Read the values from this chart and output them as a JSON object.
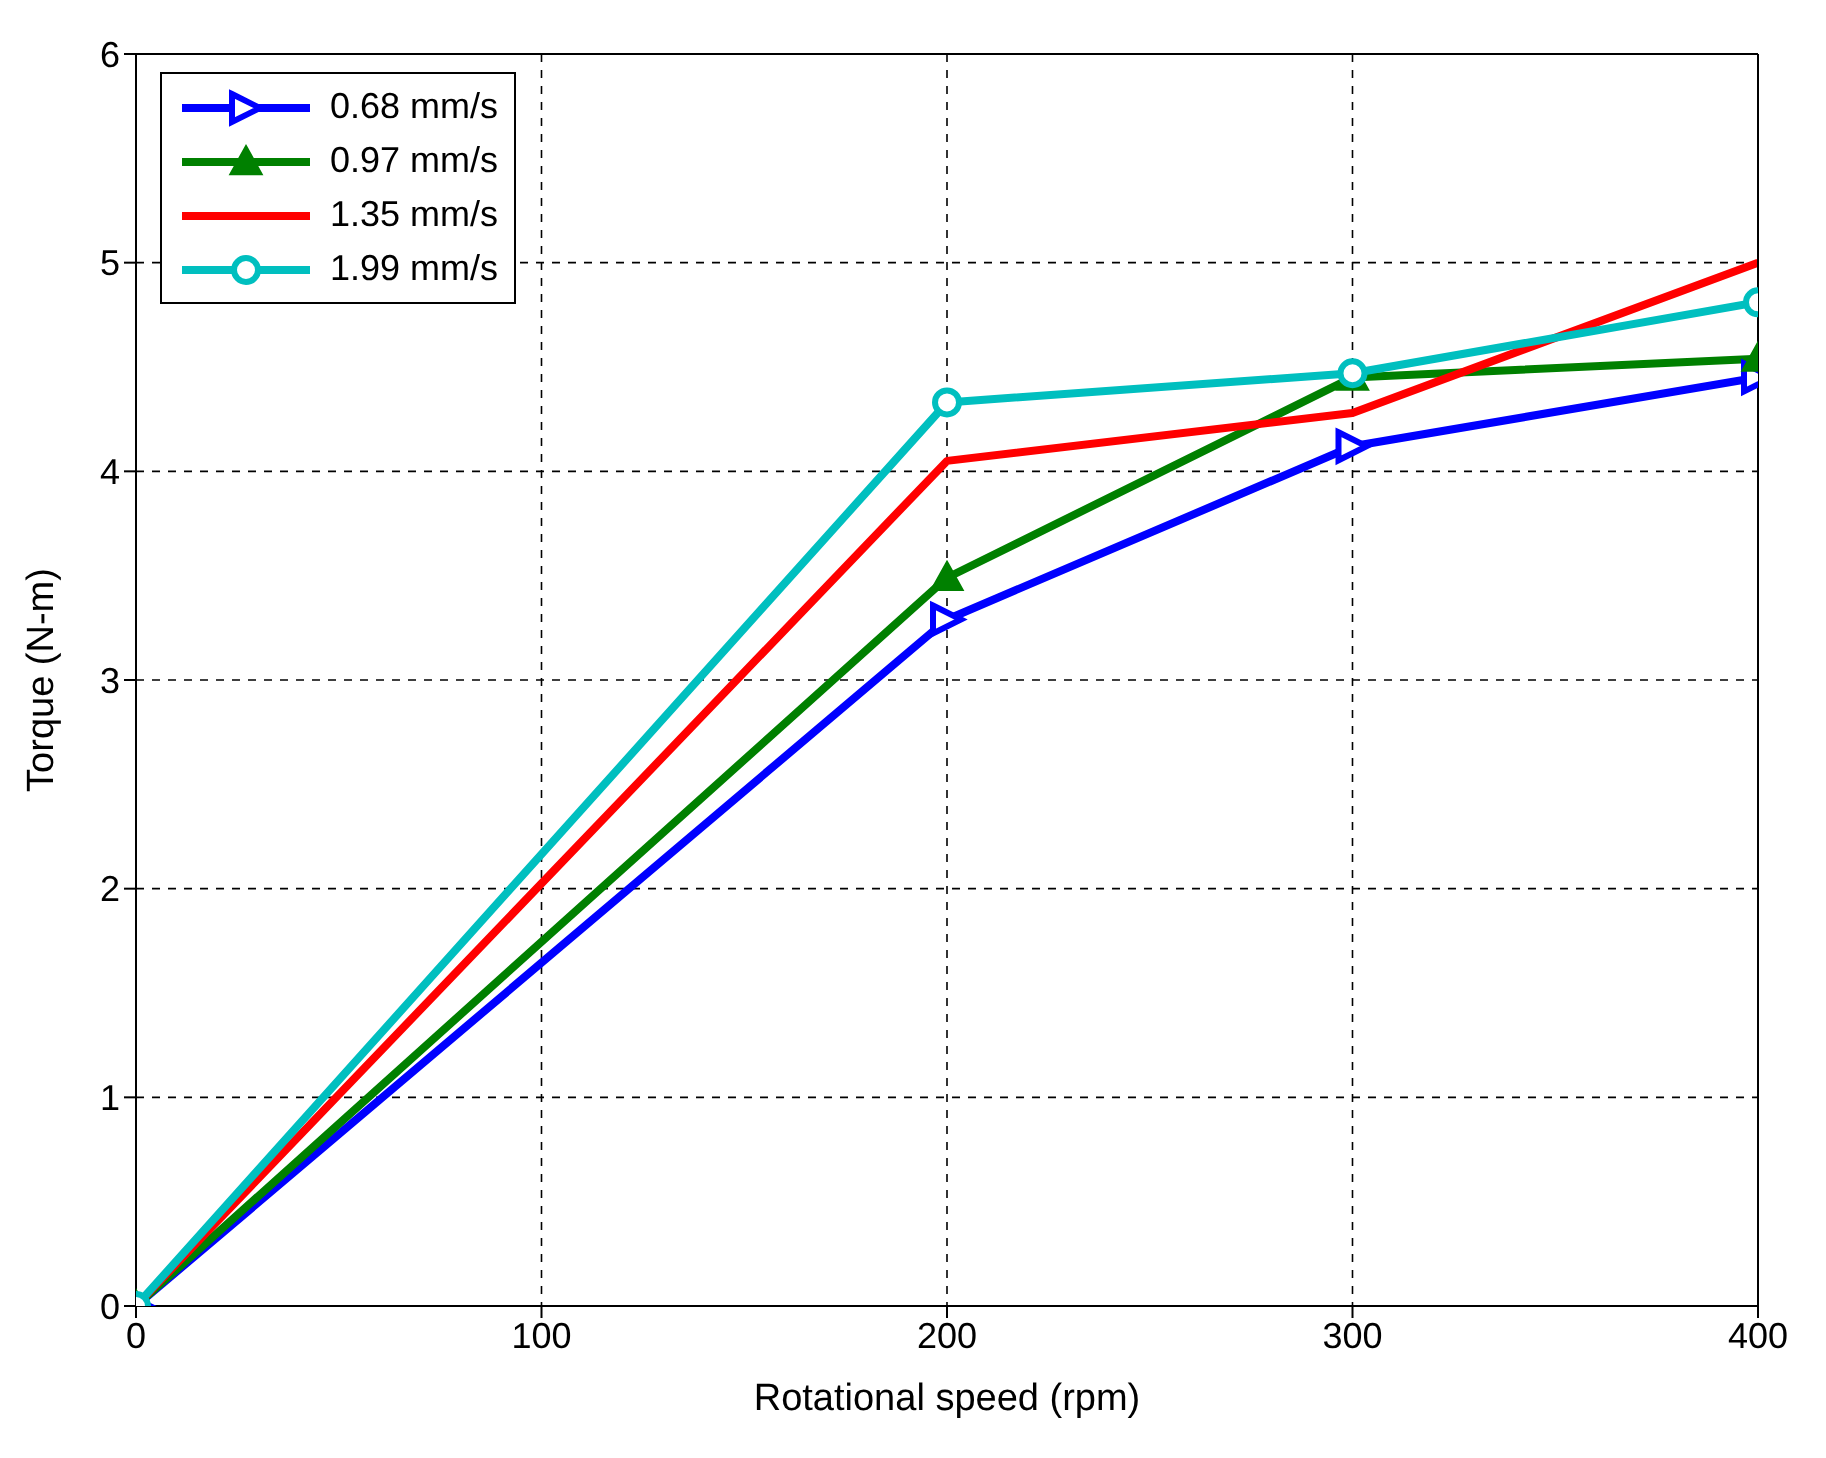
{
  "chart_data": {
    "type": "line",
    "xlabel": "Rotational speed (rpm)",
    "ylabel": "Torque (N-m)",
    "x": [
      0,
      200,
      300,
      400
    ],
    "series": [
      {
        "name": "0.68 mm/s",
        "color": "#0000ff",
        "marker": "triangle-right",
        "values": [
          0,
          3.29,
          4.12,
          4.45
        ]
      },
      {
        "name": "0.97 mm/s",
        "color": "#008000",
        "marker": "triangle",
        "values": [
          0,
          3.49,
          4.45,
          4.54
        ]
      },
      {
        "name": "1.35 mm/s",
        "color": "#ff0000",
        "marker": "none",
        "values": [
          0,
          4.05,
          4.28,
          5.0
        ]
      },
      {
        "name": "1.99 mm/s",
        "color": "#00bfbf",
        "marker": "circle",
        "values": [
          0,
          4.33,
          4.47,
          4.81
        ]
      }
    ],
    "xlim": [
      0,
      400
    ],
    "xticks": [
      0,
      100,
      200,
      300,
      400
    ],
    "ylim": [
      0,
      6
    ],
    "yticks": [
      0,
      1,
      2,
      3,
      4,
      5,
      6
    ],
    "grid": true,
    "legend": "top left",
    "line_style": "solid"
  }
}
